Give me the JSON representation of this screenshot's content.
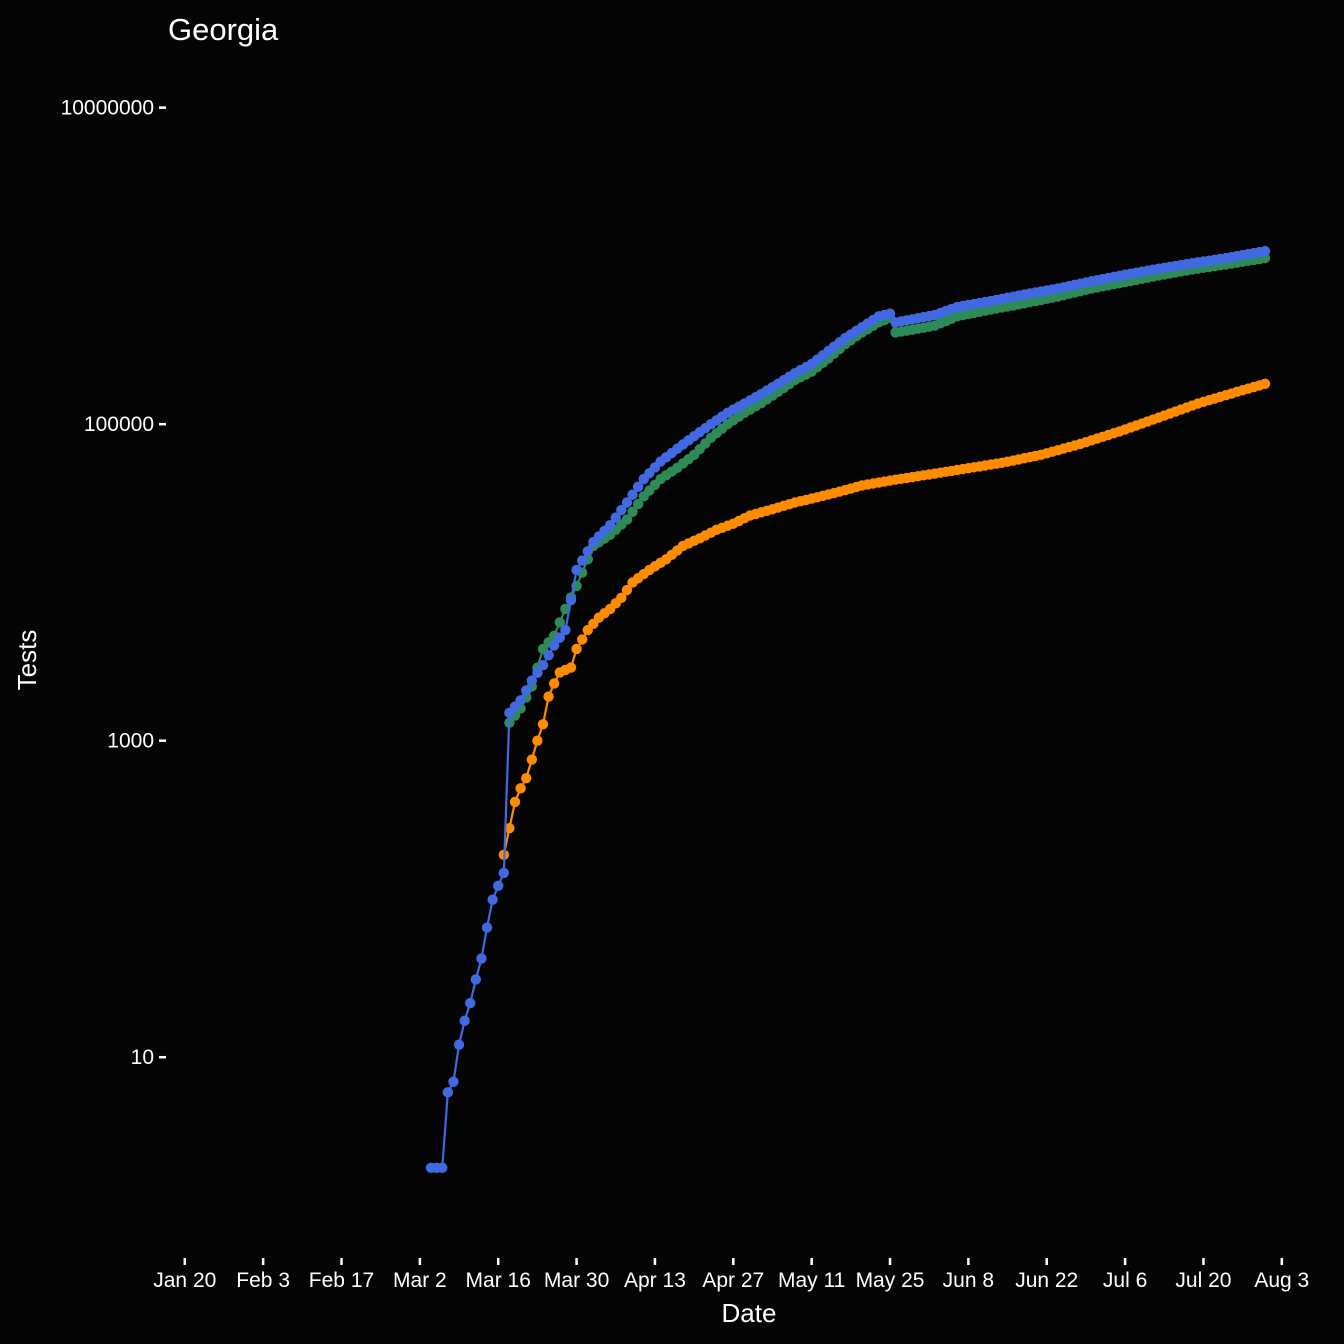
{
  "chart_data": {
    "type": "line",
    "title": "Georgia",
    "xlabel": "Date",
    "ylabel": "Tests",
    "y_scale": "log10",
    "ylim": [
      0.7,
      20000000
    ],
    "xlim": [
      "2020-01-17",
      "2020-08-05"
    ],
    "grid": false,
    "legend": "none",
    "background": "#050505",
    "x_ticks": [
      {
        "date": "2020-01-20",
        "label": "Jan 20"
      },
      {
        "date": "2020-02-03",
        "label": "Feb  3"
      },
      {
        "date": "2020-02-17",
        "label": "Feb 17"
      },
      {
        "date": "2020-03-02",
        "label": "Mar  2"
      },
      {
        "date": "2020-03-16",
        "label": "Mar 16"
      },
      {
        "date": "2020-03-30",
        "label": "Mar 30"
      },
      {
        "date": "2020-04-13",
        "label": "Apr 13"
      },
      {
        "date": "2020-04-27",
        "label": "Apr 27"
      },
      {
        "date": "2020-05-11",
        "label": "May 11"
      },
      {
        "date": "2020-05-25",
        "label": "May 25"
      },
      {
        "date": "2020-06-08",
        "label": "Jun  8"
      },
      {
        "date": "2020-06-22",
        "label": "Jun 22"
      },
      {
        "date": "2020-07-06",
        "label": "Jul  6"
      },
      {
        "date": "2020-07-20",
        "label": "Jul 20"
      },
      {
        "date": "2020-08-03",
        "label": "Aug  3"
      }
    ],
    "y_ticks": [
      {
        "value": 10,
        "label": "10"
      },
      {
        "value": 1000,
        "label": "1000"
      },
      {
        "value": 100000,
        "label": "100000"
      },
      {
        "value": 10000000,
        "label": "10000000"
      }
    ],
    "series": [
      {
        "color": "#4169e1",
        "points": [
          [
            "2020-03-04",
            2
          ],
          [
            "2020-03-05",
            2
          ],
          [
            "2020-03-06",
            2
          ],
          [
            "2020-03-07",
            6
          ],
          [
            "2020-03-08",
            7
          ],
          [
            "2020-03-09",
            12
          ],
          [
            "2020-03-10",
            17
          ],
          [
            "2020-03-11",
            22
          ],
          [
            "2020-03-12",
            31
          ],
          [
            "2020-03-13",
            42
          ],
          [
            "2020-03-14",
            66
          ],
          [
            "2020-03-15",
            99
          ],
          [
            "2020-03-16",
            121
          ],
          [
            "2020-03-17",
            146
          ],
          [
            "2020-03-18",
            1500
          ],
          [
            "2020-03-20",
            1800
          ],
          [
            "2020-03-22",
            2400
          ],
          [
            "2020-03-24",
            3000
          ],
          [
            "2020-03-26",
            4000
          ],
          [
            "2020-03-28",
            5000
          ],
          [
            "2020-03-30",
            12000
          ],
          [
            "2020-04-02",
            18000
          ],
          [
            "2020-04-05",
            23000
          ],
          [
            "2020-04-08",
            32000
          ],
          [
            "2020-04-11",
            45000
          ],
          [
            "2020-04-14",
            58000
          ],
          [
            "2020-04-17",
            70000
          ],
          [
            "2020-04-20",
            84000
          ],
          [
            "2020-04-23",
            100000
          ],
          [
            "2020-04-26",
            118000
          ],
          [
            "2020-04-29",
            135000
          ],
          [
            "2020-05-02",
            155000
          ],
          [
            "2020-05-05",
            180000
          ],
          [
            "2020-05-08",
            210000
          ],
          [
            "2020-05-11",
            240000
          ],
          [
            "2020-05-14",
            290000
          ],
          [
            "2020-05-17",
            350000
          ],
          [
            "2020-05-20",
            410000
          ],
          [
            "2020-05-23",
            480000
          ],
          [
            "2020-05-25",
            500000
          ],
          [
            "2020-05-26",
            440000
          ],
          [
            "2020-05-29",
            460000
          ],
          [
            "2020-06-02",
            490000
          ],
          [
            "2020-06-06",
            550000
          ],
          [
            "2020-06-12",
            600000
          ],
          [
            "2020-06-18",
            660000
          ],
          [
            "2020-06-24",
            720000
          ],
          [
            "2020-06-30",
            800000
          ],
          [
            "2020-07-06",
            880000
          ],
          [
            "2020-07-12",
            960000
          ],
          [
            "2020-07-18",
            1040000
          ],
          [
            "2020-07-24",
            1120000
          ],
          [
            "2020-07-31",
            1240000
          ]
        ]
      },
      {
        "color": "#2e8b57",
        "points": [
          [
            "2020-03-18",
            1300
          ],
          [
            "2020-03-20",
            1600
          ],
          [
            "2020-03-22",
            2200
          ],
          [
            "2020-03-24",
            3800
          ],
          [
            "2020-03-26",
            4600
          ],
          [
            "2020-03-28",
            6800
          ],
          [
            "2020-03-30",
            9500
          ],
          [
            "2020-04-02",
            17000
          ],
          [
            "2020-04-05",
            20000
          ],
          [
            "2020-04-08",
            25000
          ],
          [
            "2020-04-11",
            35000
          ],
          [
            "2020-04-14",
            45000
          ],
          [
            "2020-04-17",
            53000
          ],
          [
            "2020-04-20",
            64000
          ],
          [
            "2020-04-23",
            82000
          ],
          [
            "2020-04-26",
            100000
          ],
          [
            "2020-04-29",
            118000
          ],
          [
            "2020-05-02",
            136000
          ],
          [
            "2020-05-05",
            160000
          ],
          [
            "2020-05-08",
            190000
          ],
          [
            "2020-05-11",
            215000
          ],
          [
            "2020-05-14",
            260000
          ],
          [
            "2020-05-17",
            320000
          ],
          [
            "2020-05-20",
            380000
          ],
          [
            "2020-05-23",
            440000
          ],
          [
            "2020-05-25",
            470000
          ],
          [
            "2020-05-26",
            380000
          ],
          [
            "2020-05-29",
            395000
          ],
          [
            "2020-06-02",
            420000
          ],
          [
            "2020-06-06",
            480000
          ],
          [
            "2020-06-12",
            530000
          ],
          [
            "2020-06-18",
            580000
          ],
          [
            "2020-06-24",
            640000
          ],
          [
            "2020-06-30",
            720000
          ],
          [
            "2020-07-06",
            790000
          ],
          [
            "2020-07-12",
            870000
          ],
          [
            "2020-07-18",
            950000
          ],
          [
            "2020-07-24",
            1020000
          ],
          [
            "2020-07-31",
            1120000
          ]
        ]
      },
      {
        "color": "#ff8c00",
        "points": [
          [
            "2020-03-17",
            190
          ],
          [
            "2020-03-18",
            280
          ],
          [
            "2020-03-19",
            410
          ],
          [
            "2020-03-20",
            500
          ],
          [
            "2020-03-21",
            580
          ],
          [
            "2020-03-22",
            760
          ],
          [
            "2020-03-23",
            1000
          ],
          [
            "2020-03-24",
            1270
          ],
          [
            "2020-03-25",
            1900
          ],
          [
            "2020-03-26",
            2300
          ],
          [
            "2020-03-27",
            2700
          ],
          [
            "2020-03-28",
            2800
          ],
          [
            "2020-03-29",
            2900
          ],
          [
            "2020-03-30",
            3800
          ],
          [
            "2020-04-01",
            5000
          ],
          [
            "2020-04-03",
            6000
          ],
          [
            "2020-04-05",
            6800
          ],
          [
            "2020-04-07",
            8000
          ],
          [
            "2020-04-09",
            10000
          ],
          [
            "2020-04-12",
            12000
          ],
          [
            "2020-04-15",
            14000
          ],
          [
            "2020-04-18",
            17000
          ],
          [
            "2020-04-21",
            19000
          ],
          [
            "2020-04-24",
            21500
          ],
          [
            "2020-04-27",
            23500
          ],
          [
            "2020-04-30",
            26500
          ],
          [
            "2020-05-04",
            29000
          ],
          [
            "2020-05-08",
            32000
          ],
          [
            "2020-05-12",
            34500
          ],
          [
            "2020-05-16",
            37500
          ],
          [
            "2020-05-20",
            41000
          ],
          [
            "2020-05-25",
            44000
          ],
          [
            "2020-05-31",
            47500
          ],
          [
            "2020-06-07",
            52000
          ],
          [
            "2020-06-14",
            57000
          ],
          [
            "2020-06-21",
            64000
          ],
          [
            "2020-06-28",
            75000
          ],
          [
            "2020-07-05",
            90000
          ],
          [
            "2020-07-12",
            110000
          ],
          [
            "2020-07-19",
            135000
          ],
          [
            "2020-07-26",
            160000
          ],
          [
            "2020-07-31",
            180000
          ]
        ]
      }
    ]
  }
}
